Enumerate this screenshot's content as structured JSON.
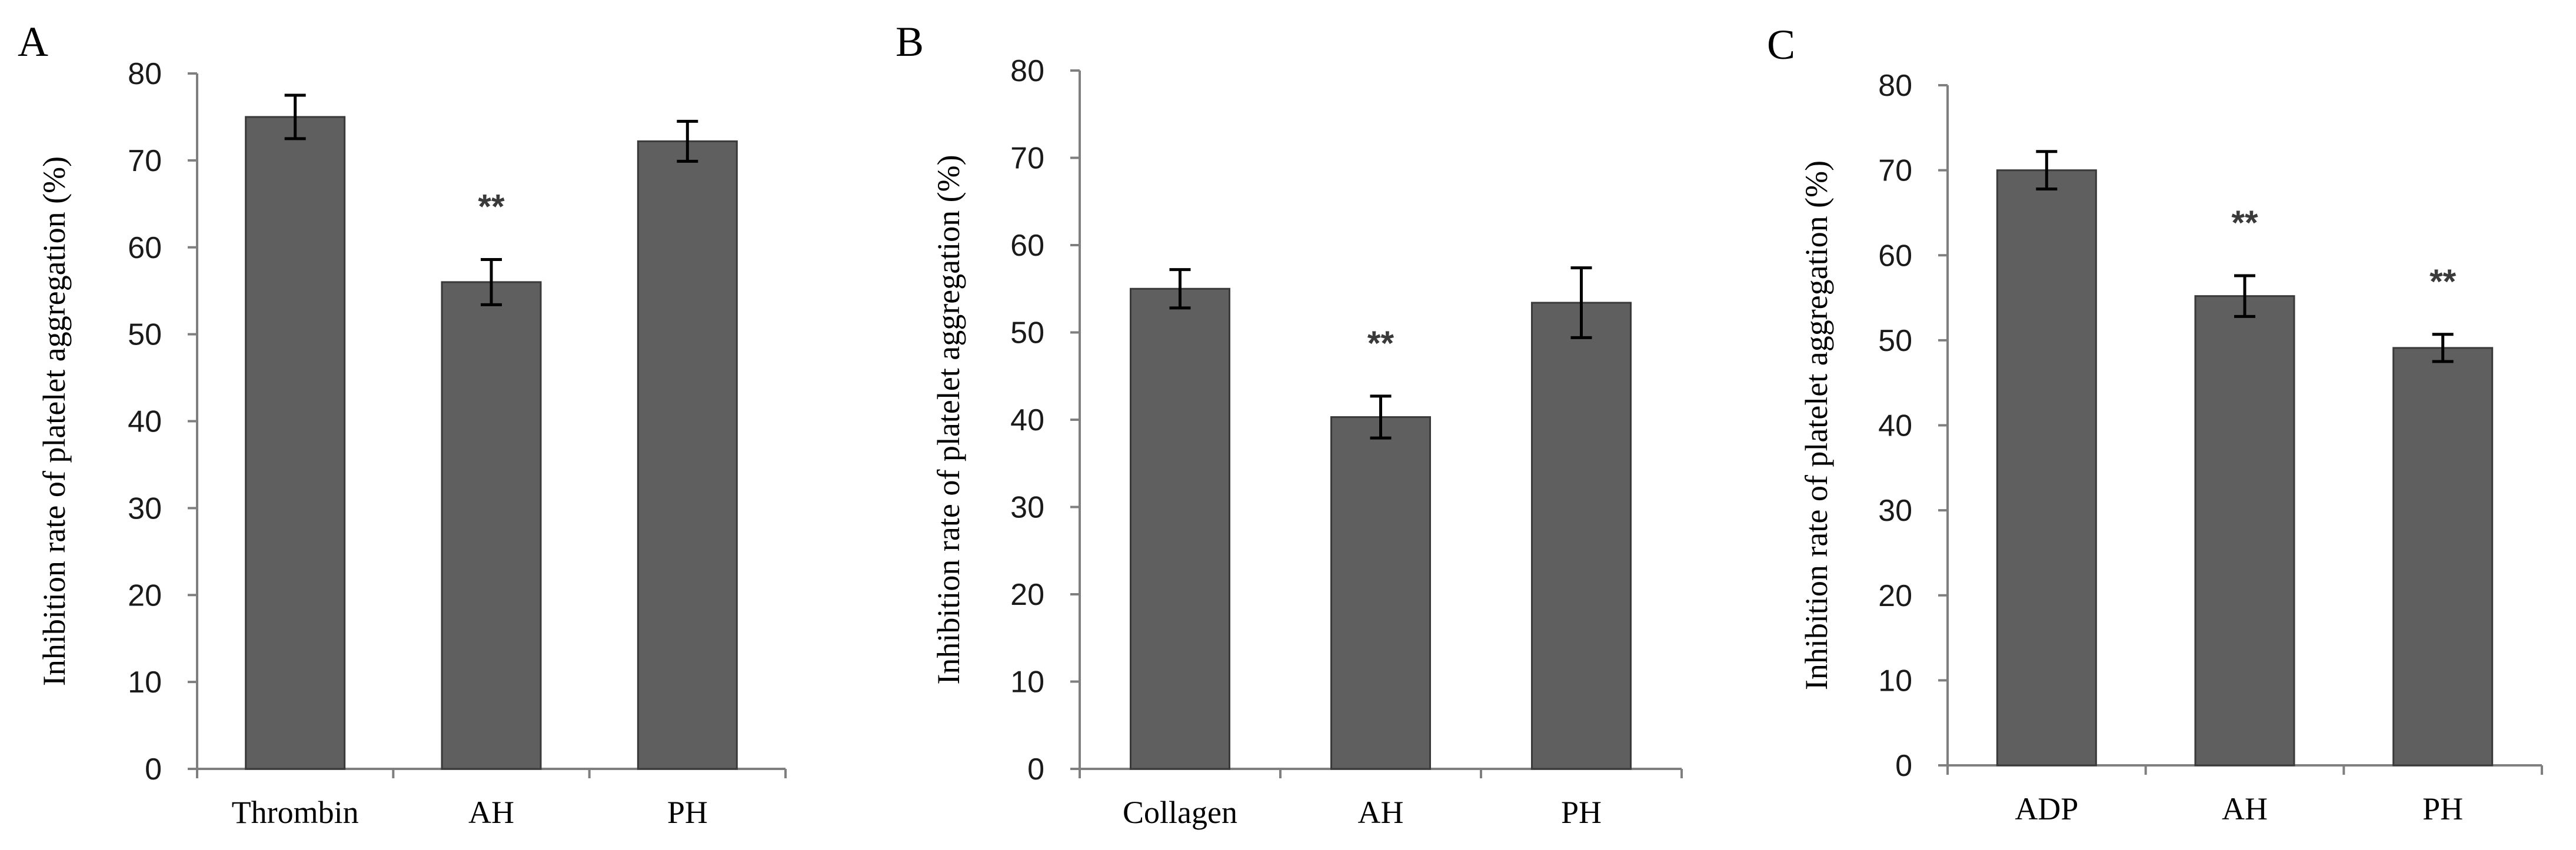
{
  "chart_data": [
    {
      "type": "bar",
      "panel_label": "A",
      "title": "",
      "xlabel": "",
      "ylabel": "Inhibition rate of platelet aggregation (%)",
      "ylim": [
        0,
        80
      ],
      "yticks": [
        0,
        10,
        20,
        30,
        40,
        50,
        60,
        70,
        80
      ],
      "categories": [
        "Thrombin",
        "AH",
        "PH"
      ],
      "values": [
        75,
        56,
        72.2
      ],
      "errors": [
        2.5,
        2.6,
        2.3
      ],
      "annotations": [
        "",
        "**",
        ""
      ],
      "bar_color": "#5f5f5f"
    },
    {
      "type": "bar",
      "panel_label": "B",
      "title": "",
      "xlabel": "",
      "ylabel": "Inhibition rate of platelet aggregation (%)",
      "ylim": [
        0,
        80
      ],
      "yticks": [
        0,
        10,
        20,
        30,
        40,
        50,
        60,
        70,
        80
      ],
      "categories": [
        "Collagen",
        "AH",
        "PH"
      ],
      "values": [
        55,
        40.3,
        53.4
      ],
      "errors": [
        2.2,
        2.4,
        4.0
      ],
      "annotations": [
        "",
        "**",
        ""
      ],
      "bar_color": "#5f5f5f"
    },
    {
      "type": "bar",
      "panel_label": "C",
      "title": "",
      "xlabel": "",
      "ylabel": "Inhibition rate of platelet aggregation (%)",
      "ylim": [
        0,
        80
      ],
      "yticks": [
        0,
        10,
        20,
        30,
        40,
        50,
        60,
        70,
        80
      ],
      "categories": [
        "ADP",
        "AH",
        "PH"
      ],
      "values": [
        70,
        55.2,
        49.1
      ],
      "errors": [
        2.2,
        2.4,
        1.6
      ],
      "annotations": [
        "",
        "**",
        "**"
      ],
      "bar_color": "#5f5f5f"
    }
  ]
}
